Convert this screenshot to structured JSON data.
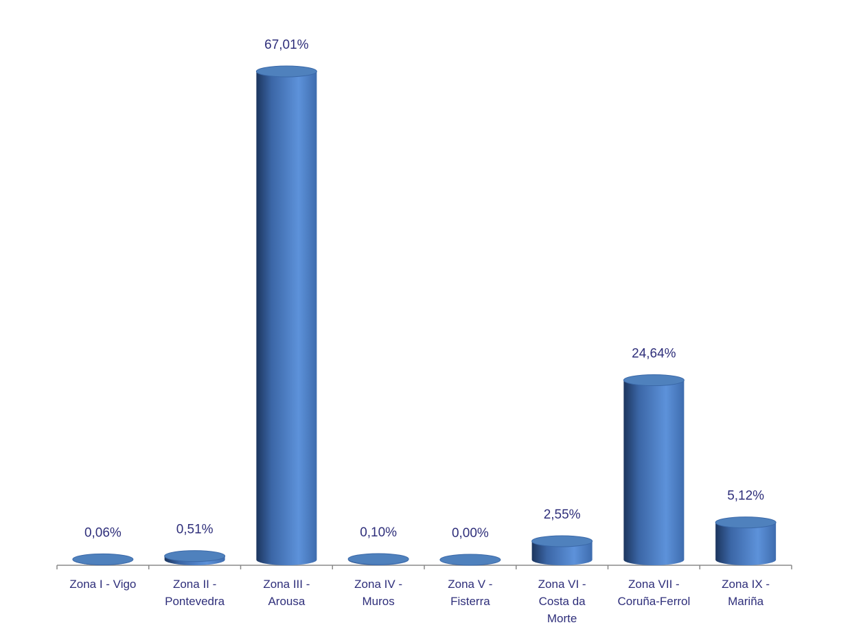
{
  "chart_data": {
    "type": "cylinder",
    "categories": [
      "Zona I - Vigo",
      "Zona II - Pontevedra",
      "Zona III - Arousa",
      "Zona IV - Muros",
      "Zona V - Fisterra",
      "Zona VI - Costa da Morte",
      "Zona VII - Coruña-Ferrol",
      "Zona IX - Mariña"
    ],
    "values": [
      0.06,
      0.51,
      67.01,
      0.1,
      0,
      2.55,
      24.64,
      5.12
    ],
    "value_labels": [
      "0,06%",
      "0,51%",
      "67,01%",
      "0,10%",
      "0,00%",
      "2,55%",
      "24,64%",
      "5,12%"
    ],
    "color": "#4f81bd"
  }
}
